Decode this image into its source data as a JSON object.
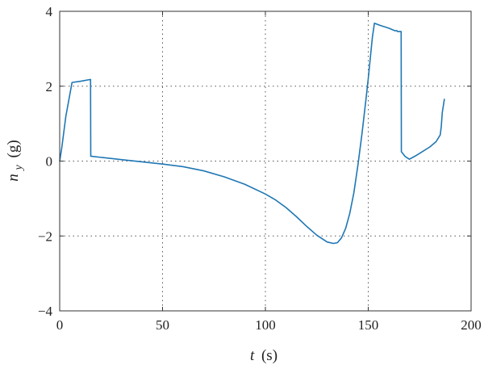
{
  "chart_data": {
    "type": "line",
    "title": "",
    "xlabel_var": "t",
    "xlabel_unit": "(s)",
    "ylabel_var": "n",
    "ylabel_sub": "y",
    "ylabel_unit": "(g)",
    "xlim": [
      0,
      200
    ],
    "ylim": [
      -4,
      4
    ],
    "x_ticks": [
      0,
      50,
      100,
      150,
      200
    ],
    "y_ticks": [
      -4,
      -2,
      0,
      2,
      4
    ],
    "x_tick_labels": [
      "0",
      "50",
      "100",
      "150",
      "200"
    ],
    "y_tick_labels": [
      "−4",
      "−2",
      "0",
      "2",
      "4"
    ],
    "grid": "dotted",
    "legend": "none",
    "series": [
      {
        "color": "#1f77b4",
        "x": [
          0,
          1,
          3,
          6,
          10,
          15,
          15.1,
          20,
          30,
          40,
          50,
          60,
          70,
          80,
          90,
          100,
          105,
          110,
          115,
          120,
          125,
          130,
          133,
          135,
          137,
          139,
          141,
          143,
          145,
          147,
          149,
          150,
          151,
          152,
          153,
          153.1,
          156,
          160,
          163,
          164,
          164.2,
          166,
          166.1,
          168,
          170,
          173,
          176,
          180,
          183,
          185,
          185.5,
          186,
          187
        ],
        "y": [
          0,
          0.35,
          1.2,
          2.1,
          2.13,
          2.18,
          0.13,
          0.1,
          0.04,
          -0.02,
          -0.08,
          -0.15,
          -0.26,
          -0.42,
          -0.62,
          -0.88,
          -1.04,
          -1.24,
          -1.48,
          -1.74,
          -1.98,
          -2.16,
          -2.2,
          -2.18,
          -2.05,
          -1.8,
          -1.4,
          -0.85,
          -0.1,
          0.75,
          1.7,
          2.2,
          2.75,
          3.3,
          3.68,
          3.68,
          3.62,
          3.55,
          3.48,
          3.48,
          3.46,
          3.46,
          0.25,
          0.12,
          0.05,
          0.14,
          0.24,
          0.38,
          0.52,
          0.7,
          0.92,
          1.3,
          1.65
        ]
      }
    ]
  }
}
